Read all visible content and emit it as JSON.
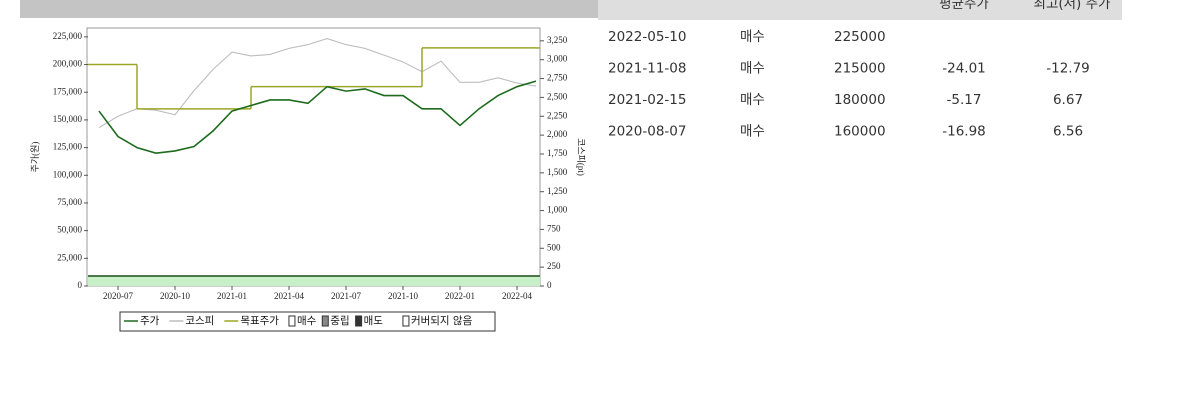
{
  "chart_data": {
    "type": "line",
    "y_label": "주가(원)",
    "y2_label": "코스피(pt)",
    "x": [
      null,
      "2020-07",
      null,
      null,
      "2020-10",
      null,
      null,
      "2021-01",
      null,
      null,
      "2021-04",
      null,
      null,
      "2021-07",
      null,
      null,
      "2021-10",
      null,
      null,
      "2022-01",
      null,
      null,
      "2022-04",
      null
    ],
    "series": [
      {
        "name": "주가",
        "color": "#1e6b1e",
        "values": [
          158000,
          135000,
          125000,
          120000,
          122000,
          126000,
          140000,
          158000,
          163000,
          168000,
          168000,
          165000,
          180000,
          176000,
          178000,
          172000,
          172000,
          160000,
          160000,
          145000,
          160000,
          172000,
          180000,
          185000
        ]
      },
      {
        "name": "코스피",
        "color": "#bdbdbd",
        "axis": "y2",
        "values": [
          2100,
          2250,
          2350,
          2330,
          2270,
          2590,
          2870,
          3100,
          3050,
          3070,
          3150,
          3200,
          3280,
          3200,
          3150,
          3060,
          2970,
          2840,
          2980,
          2700,
          2700,
          2760,
          2690,
          2650
        ]
      },
      {
        "name": "목표주가",
        "color": "#9aa626",
        "step": true,
        "values": [
          200000,
          200000,
          160000,
          160000,
          160000,
          160000,
          160000,
          160000,
          180000,
          180000,
          180000,
          180000,
          180000,
          180000,
          180000,
          180000,
          180000,
          215000,
          215000,
          215000,
          215000,
          215000,
          215000,
          215000
        ]
      }
    ],
    "ratings": [
      "매수",
      "중립",
      "매도",
      "커버되지 않음"
    ],
    "ylim": [
      0,
      233000
    ],
    "yticks": [
      0,
      {
        "value": 25000,
        "label": "25,000"
      },
      {
        "value": 50000,
        "label": "50,000"
      },
      {
        "value": 75000,
        "label": "75,000"
      },
      {
        "value": 100000,
        "label": "100,000"
      },
      {
        "value": 125000,
        "label": "125,000"
      },
      {
        "value": 150000,
        "label": "150,000"
      },
      {
        "value": 175000,
        "label": "175,000"
      },
      {
        "value": 200000,
        "label": "200,000"
      },
      {
        "value": 225000,
        "label": "225,000"
      }
    ],
    "y2lim": [
      0,
      3420
    ],
    "y2ticks": [
      0,
      250,
      500,
      750,
      {
        "value": 1000,
        "label": "1,000"
      },
      {
        "value": 1250,
        "label": "1,250"
      },
      {
        "value": 1500,
        "label": "1,500"
      },
      {
        "value": 1750,
        "label": "1,750"
      },
      {
        "value": 2000,
        "label": "2,000"
      },
      {
        "value": 2250,
        "label": "2,250"
      },
      {
        "value": 2500,
        "label": "2,500"
      },
      {
        "value": 2750,
        "label": "2,750"
      },
      {
        "value": 3000,
        "label": "3,000"
      },
      {
        "value": 3250,
        "label": "3,250"
      }
    ]
  },
  "table": {
    "header": [
      "평균주가",
      "최고(저) 주가"
    ],
    "rows": [
      {
        "date": "2022-05-10",
        "rating": "매수",
        "target": 225000
      },
      {
        "date": "2021-11-08",
        "rating": "매수",
        "target": 215000,
        "avg": -24.01,
        "high_low": -12.79
      },
      {
        "date": "2021-02-15",
        "rating": "매수",
        "target": 180000,
        "avg": -5.17,
        "high_low": 6.67
      },
      {
        "date": "2020-08-07",
        "rating": "매수",
        "target": 160000,
        "avg": -16.98,
        "high_low": 6.56
      }
    ]
  }
}
